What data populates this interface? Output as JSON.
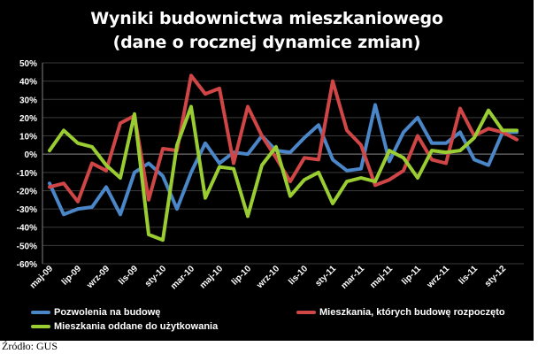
{
  "source_note": "Źródło: GUS",
  "chart_data": {
    "type": "line",
    "title": "Wyniki budownictwa mieszkaniowego",
    "subtitle": "(dane o rocznej dynamice zmian)",
    "x": [
      "maj-09",
      "cze-09",
      "lip-09",
      "sie-09",
      "wrz-09",
      "paź-09",
      "lis-09",
      "gru-09",
      "sty-10",
      "lut-10",
      "mar-10",
      "kwi-10",
      "maj-10",
      "cze-10",
      "lip-10",
      "sie-10",
      "wrz-10",
      "paź-10",
      "lis-10",
      "gru-10",
      "sty-11",
      "lut-11",
      "mar-11",
      "kwi-11",
      "maj-11",
      "cze-11",
      "lip-11",
      "sie-11",
      "wrz-11",
      "paź-11",
      "lis-11",
      "gru-11",
      "sty-12",
      "lut-12"
    ],
    "xtick_labels": [
      "maj-09",
      "lip-09",
      "wrz-09",
      "lis-09",
      "sty-10",
      "mar-10",
      "maj-10",
      "lip-10",
      "wrz-10",
      "lis-10",
      "sty-11",
      "mar-11",
      "maj-11",
      "lip-11",
      "wrz-11",
      "lis-11",
      "sty-12"
    ],
    "ytick_labels": [
      "50%",
      "40%",
      "30%",
      "20%",
      "10%",
      "0%",
      "-10%",
      "-20%",
      "-30%",
      "-40%",
      "-50%",
      "-60%"
    ],
    "ylim": [
      -60,
      50
    ],
    "ystep": 10,
    "series": [
      {
        "name": "Pozwolenia na budowę",
        "color": "#4a86c8",
        "values": [
          -16,
          -33,
          -30,
          -29,
          -18,
          -33,
          -10,
          -5,
          -12,
          -30,
          -10,
          6,
          -5,
          1,
          0,
          10,
          2,
          1,
          9,
          16,
          -3,
          -9,
          -8,
          27,
          -4,
          12,
          20,
          6,
          6,
          12,
          -3,
          -6,
          12,
          12
        ]
      },
      {
        "name": "Mieszkania, których budowę rozpoczęto",
        "color": "#d04545",
        "values": [
          -18,
          -16,
          -26,
          -5,
          -9,
          17,
          21,
          -25,
          3,
          2,
          43,
          33,
          36,
          -5,
          26,
          10,
          -2,
          -15,
          -2,
          -3,
          40,
          13,
          5,
          -17,
          -14,
          -9,
          10,
          -3,
          -5,
          25,
          10,
          14,
          12,
          8
        ]
      },
      {
        "name": "Mieszkania oddane do użytkowania",
        "color": "#9acd32",
        "values": [
          2,
          13,
          6,
          4,
          -6,
          -13,
          22,
          -44,
          -47,
          5,
          26,
          -24,
          -7,
          -8,
          -34,
          -6,
          4,
          -23,
          -14,
          -10,
          -27,
          -15,
          -13,
          -15,
          2,
          -2,
          -13,
          2,
          1,
          2,
          9,
          24,
          13,
          13
        ]
      }
    ],
    "legend_position": "bottom",
    "grid": "horizontal"
  }
}
